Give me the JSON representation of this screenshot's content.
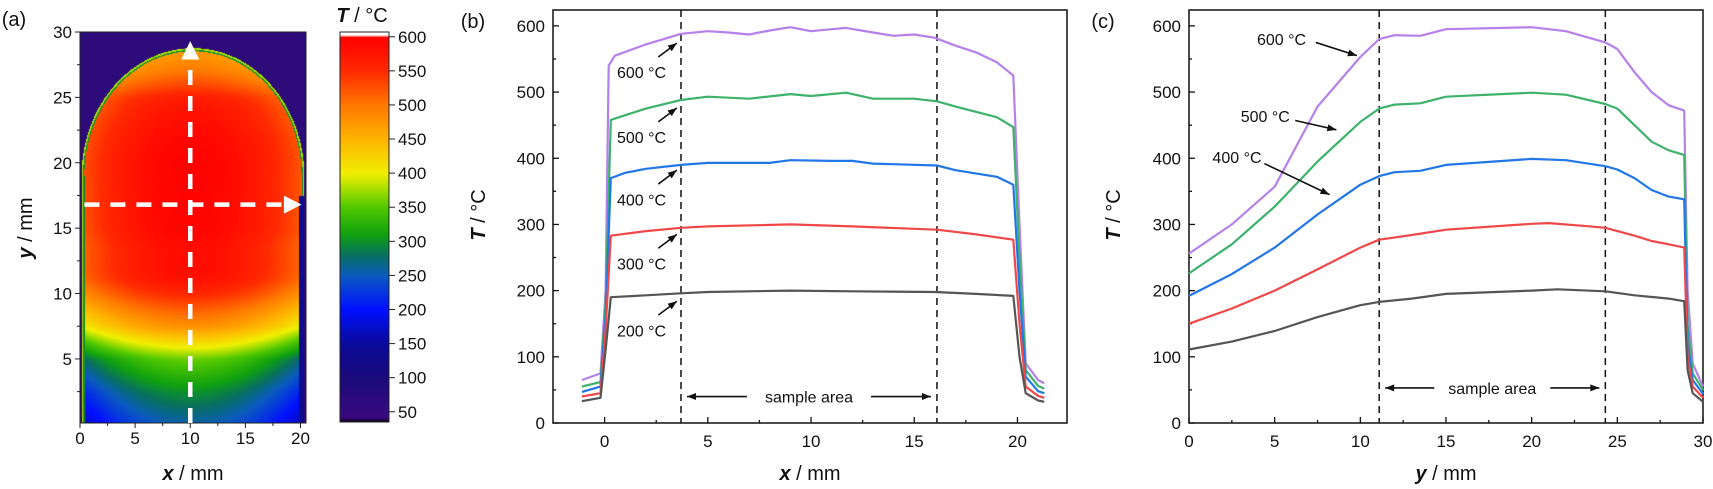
{
  "chart_data": [
    {
      "panel": "(a)",
      "type": "heatmap",
      "xlabel_var": "x",
      "xlabel_unit": " / mm",
      "ylabel_var": "y",
      "ylabel_unit": " / mm",
      "xlim": [
        0,
        20.5
      ],
      "ylim": [
        0.1,
        30
      ],
      "xticks": [
        "0",
        "5",
        "10",
        "15",
        "20"
      ],
      "yticks": [
        "5",
        "10",
        "15",
        "20",
        "25",
        "30"
      ],
      "colorbar": {
        "title_var": "T",
        "title_unit": " / °C",
        "range": [
          35,
          607
        ],
        "ticks": [
          "50",
          "100",
          "150",
          "200",
          "250",
          "300",
          "350",
          "400",
          "450",
          "500",
          "550",
          "600"
        ],
        "colormap": [
          [
            35,
            "#000000"
          ],
          [
            42,
            "#3a0a80"
          ],
          [
            100,
            "#1a0a7a"
          ],
          [
            150,
            "#0a0a9a"
          ],
          [
            200,
            "#0010ff"
          ],
          [
            250,
            "#0a5ac0"
          ],
          [
            280,
            "#087060"
          ],
          [
            310,
            "#10a010"
          ],
          [
            350,
            "#50c800"
          ],
          [
            400,
            "#f0f000"
          ],
          [
            450,
            "#ffb400"
          ],
          [
            500,
            "#ff7800"
          ],
          [
            550,
            "#ff2a00"
          ],
          [
            600,
            "#ff0000"
          ],
          [
            603,
            "#ffffff"
          ]
        ]
      },
      "outside_color": "#2d0b7a",
      "line_scan_x_mm": 10,
      "line_scan_y_mm": 16.8
    },
    {
      "panel": "(b)",
      "type": "line",
      "xlabel_var": "x",
      "xlabel_unit": " / mm",
      "ylabel_var": "T",
      "ylabel_unit": " / °C",
      "xlim": [
        -2.5,
        22.4
      ],
      "ylim": [
        0,
        624
      ],
      "xticks": [
        0,
        5,
        10,
        15,
        20
      ],
      "yticks": [
        0,
        100,
        200,
        300,
        400,
        500,
        600
      ],
      "sample_area": {
        "label": "sample area",
        "x_from": 3.7,
        "x_to": 16.1
      },
      "series": [
        {
          "name": "600 °C",
          "color": "#b580ea",
          "points": [
            [
              -1.1,
              65
            ],
            [
              -0.2,
              75
            ],
            [
              0.05,
              200
            ],
            [
              0.2,
              540
            ],
            [
              0.5,
              555
            ],
            [
              2,
              572
            ],
            [
              3.7,
              588
            ],
            [
              5,
              592
            ],
            [
              6,
              590
            ],
            [
              7,
              587
            ],
            [
              8,
              593
            ],
            [
              9,
              598
            ],
            [
              10,
              592
            ],
            [
              11,
              595
            ],
            [
              11.7,
              597
            ],
            [
              13,
              590
            ],
            [
              14,
              585
            ],
            [
              15,
              587
            ],
            [
              16,
              582
            ],
            [
              17,
              570
            ],
            [
              18,
              560
            ],
            [
              19,
              545
            ],
            [
              19.8,
              525
            ],
            [
              20.1,
              300
            ],
            [
              20.4,
              90
            ],
            [
              21,
              65
            ],
            [
              21.3,
              60
            ]
          ]
        },
        {
          "name": "500 °C",
          "color": "#3db26b",
          "points": [
            [
              -1.1,
              55
            ],
            [
              -0.2,
              62
            ],
            [
              0.05,
              180
            ],
            [
              0.3,
              458
            ],
            [
              1,
              465
            ],
            [
              2,
              475
            ],
            [
              3.7,
              488
            ],
            [
              5,
              493
            ],
            [
              7,
              490
            ],
            [
              9,
              497
            ],
            [
              10,
              494
            ],
            [
              11.7,
              499
            ],
            [
              13,
              490
            ],
            [
              15,
              490
            ],
            [
              16.1,
              486
            ],
            [
              17,
              478
            ],
            [
              19,
              462
            ],
            [
              19.8,
              447
            ],
            [
              20.1,
              250
            ],
            [
              20.4,
              80
            ],
            [
              21,
              56
            ],
            [
              21.3,
              52
            ]
          ]
        },
        {
          "name": "400 °C",
          "color": "#2277e6",
          "points": [
            [
              -1.1,
              47
            ],
            [
              -0.2,
              55
            ],
            [
              0.05,
              160
            ],
            [
              0.3,
              370
            ],
            [
              1,
              378
            ],
            [
              2,
              384
            ],
            [
              3.7,
              390
            ],
            [
              5,
              393
            ],
            [
              8,
              393
            ],
            [
              9,
              397
            ],
            [
              11,
              396
            ],
            [
              12,
              396
            ],
            [
              13,
              392
            ],
            [
              16.1,
              389
            ],
            [
              17,
              382
            ],
            [
              19,
              372
            ],
            [
              19.8,
              360
            ],
            [
              20.1,
              200
            ],
            [
              20.4,
              70
            ],
            [
              21,
              48
            ],
            [
              21.3,
              45
            ]
          ]
        },
        {
          "name": "300 °C",
          "color": "#f04848",
          "points": [
            [
              -1.1,
              40
            ],
            [
              -0.2,
              45
            ],
            [
              0.05,
              140
            ],
            [
              0.3,
              283
            ],
            [
              2,
              290
            ],
            [
              3.7,
              295
            ],
            [
              5,
              297
            ],
            [
              9,
              300
            ],
            [
              12,
              297
            ],
            [
              16.1,
              292
            ],
            [
              18,
              285
            ],
            [
              19.8,
              277
            ],
            [
              20.1,
              150
            ],
            [
              20.4,
              55
            ],
            [
              21,
              41
            ],
            [
              21.3,
              38
            ]
          ]
        },
        {
          "name": "200 °C",
          "color": "#555555",
          "points": [
            [
              -1.1,
              33
            ],
            [
              -0.2,
              38
            ],
            [
              0.05,
              110
            ],
            [
              0.3,
              190
            ],
            [
              2,
              193
            ],
            [
              3.7,
              196
            ],
            [
              5,
              198
            ],
            [
              9,
              200
            ],
            [
              12,
              199
            ],
            [
              16,
              198
            ],
            [
              18,
              195
            ],
            [
              19.8,
              192
            ],
            [
              20.1,
              100
            ],
            [
              20.4,
              45
            ],
            [
              21,
              34
            ],
            [
              21.3,
              32
            ]
          ]
        }
      ],
      "annotations": [
        {
          "text": "600 °C",
          "x": 0.6,
          "y": 530,
          "arrow_from": [
            2.6,
            553
          ],
          "arrow_to": [
            3.5,
            574
          ]
        },
        {
          "text": "500 °C",
          "x": 0.6,
          "y": 432,
          "arrow_from": [
            2.6,
            455
          ],
          "arrow_to": [
            3.5,
            476
          ]
        },
        {
          "text": "400 °C",
          "x": 0.6,
          "y": 338,
          "arrow_from": [
            2.6,
            361
          ],
          "arrow_to": [
            3.5,
            382
          ]
        },
        {
          "text": "300 °C",
          "x": 0.6,
          "y": 241,
          "arrow_from": [
            2.6,
            264
          ],
          "arrow_to": [
            3.5,
            285
          ]
        },
        {
          "text": "200 °C",
          "x": 0.6,
          "y": 140,
          "arrow_from": [
            2.6,
            163
          ],
          "arrow_to": [
            3.5,
            184
          ]
        }
      ]
    },
    {
      "panel": "(c)",
      "type": "line",
      "xlabel_var": "y",
      "xlabel_unit": " / mm",
      "ylabel_var": "T",
      "ylabel_unit": " / °C",
      "xlim": [
        0,
        30
      ],
      "ylim": [
        0,
        624
      ],
      "xticks": [
        0,
        5,
        10,
        15,
        20,
        25,
        30
      ],
      "yticks": [
        0,
        100,
        200,
        300,
        400,
        500,
        600
      ],
      "sample_area": {
        "label": "sample area",
        "x_from": 11.1,
        "x_to": 24.3
      },
      "series": [
        {
          "name": "600 °C",
          "color": "#b580ea",
          "points": [
            [
              0,
              256
            ],
            [
              2.5,
              300
            ],
            [
              5,
              357
            ],
            [
              7.5,
              478
            ],
            [
              10,
              553
            ],
            [
              11.1,
              580
            ],
            [
              12,
              586
            ],
            [
              13.5,
              585
            ],
            [
              15,
              595
            ],
            [
              20,
              598
            ],
            [
              22,
              592
            ],
            [
              24.3,
              575
            ],
            [
              25,
              565
            ],
            [
              26,
              530
            ],
            [
              27,
              500
            ],
            [
              28,
              480
            ],
            [
              28.9,
              472
            ],
            [
              29.1,
              200
            ],
            [
              29.4,
              90
            ],
            [
              30,
              55
            ]
          ]
        },
        {
          "name": "500 °C",
          "color": "#3db26b",
          "points": [
            [
              0,
              226
            ],
            [
              2.5,
              270
            ],
            [
              5,
              327
            ],
            [
              7.5,
              395
            ],
            [
              10,
              455
            ],
            [
              11.1,
              475
            ],
            [
              12,
              481
            ],
            [
              13.5,
              483
            ],
            [
              15,
              493
            ],
            [
              20,
              499
            ],
            [
              22,
              496
            ],
            [
              24.3,
              482
            ],
            [
              25,
              475
            ],
            [
              26,
              450
            ],
            [
              27,
              425
            ],
            [
              28,
              412
            ],
            [
              28.9,
              405
            ],
            [
              29.1,
              150
            ],
            [
              29.4,
              75
            ],
            [
              30,
              50
            ]
          ]
        },
        {
          "name": "400 °C",
          "color": "#2277e6",
          "points": [
            [
              0,
              192
            ],
            [
              2.5,
              225
            ],
            [
              5,
              265
            ],
            [
              7.5,
              315
            ],
            [
              10,
              360
            ],
            [
              11.1,
              373
            ],
            [
              12,
              379
            ],
            [
              13.5,
              381
            ],
            [
              15,
              390
            ],
            [
              20,
              399
            ],
            [
              22,
              397
            ],
            [
              24.3,
              388
            ],
            [
              25,
              383
            ],
            [
              26,
              370
            ],
            [
              27,
              352
            ],
            [
              28,
              342
            ],
            [
              28.9,
              338
            ],
            [
              29.1,
              120
            ],
            [
              29.4,
              65
            ],
            [
              30,
              44
            ]
          ]
        },
        {
          "name": "300 °C",
          "color": "#f04848",
          "points": [
            [
              0,
              150
            ],
            [
              2.5,
              173
            ],
            [
              5,
              200
            ],
            [
              7.5,
              232
            ],
            [
              10,
              265
            ],
            [
              11.1,
              277
            ],
            [
              13,
              284
            ],
            [
              15,
              292
            ],
            [
              20,
              301
            ],
            [
              21,
              302
            ],
            [
              23,
              298
            ],
            [
              24.3,
              295
            ],
            [
              25,
              290
            ],
            [
              26,
              283
            ],
            [
              27,
              275
            ],
            [
              28,
              270
            ],
            [
              28.9,
              265
            ],
            [
              29.1,
              100
            ],
            [
              29.4,
              55
            ],
            [
              30,
              38
            ]
          ]
        },
        {
          "name": "200 °C",
          "color": "#555555",
          "points": [
            [
              0,
              111
            ],
            [
              2.5,
              123
            ],
            [
              5,
              139
            ],
            [
              7.5,
              160
            ],
            [
              10,
              178
            ],
            [
              11.1,
              183
            ],
            [
              13,
              188
            ],
            [
              15,
              195
            ],
            [
              20,
              200
            ],
            [
              21.5,
              202
            ],
            [
              24.3,
              199
            ],
            [
              26,
              193
            ],
            [
              28,
              188
            ],
            [
              28.9,
              184
            ],
            [
              29.1,
              80
            ],
            [
              29.4,
              45
            ],
            [
              30,
              32
            ]
          ]
        }
      ],
      "annotations": [
        {
          "text": "600 °C",
          "x": 5.4,
          "y": 580,
          "arrow_from": [
            7.4,
            575
          ],
          "arrow_to": [
            9.8,
            555
          ]
        },
        {
          "text": "500 °C",
          "x": 4.45,
          "y": 464,
          "arrow_from": [
            6.2,
            457
          ],
          "arrow_to": [
            8.6,
            443
          ]
        },
        {
          "text": "400 °C",
          "x": 2.8,
          "y": 402,
          "arrow_from": [
            4.4,
            392
          ],
          "arrow_to": [
            8.2,
            345
          ]
        }
      ]
    }
  ]
}
